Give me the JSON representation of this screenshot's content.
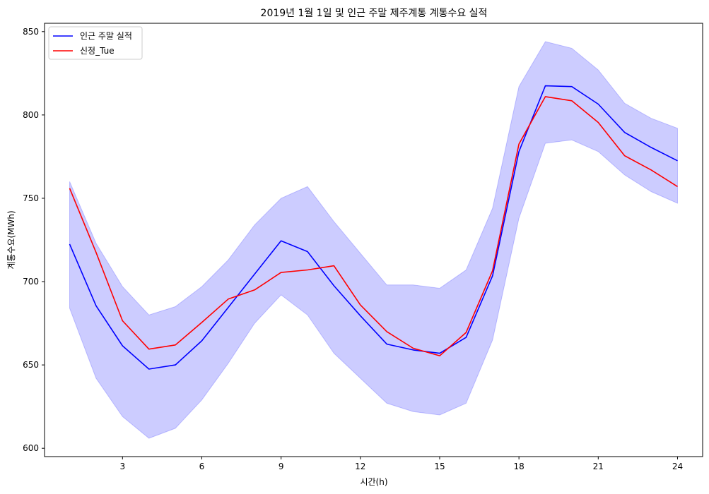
{
  "chart_data": {
    "type": "line",
    "title": "2019년 1월 1일 및 인근 주말 제주계통 계통수요 실적",
    "xlabel": "시간(h)",
    "ylabel": "계통수요(MWh)",
    "x": [
      1,
      2,
      3,
      4,
      5,
      6,
      7,
      8,
      9,
      10,
      11,
      12,
      13,
      14,
      15,
      16,
      17,
      18,
      19,
      20,
      21,
      22,
      23,
      24
    ],
    "xlim": [
      0.05,
      24.95
    ],
    "ylim": [
      595,
      855
    ],
    "xticks": [
      3,
      6,
      9,
      12,
      15,
      18,
      21,
      24
    ],
    "yticks": [
      600,
      650,
      700,
      750,
      800,
      850
    ],
    "grid": false,
    "legend_position": "top-left",
    "band": {
      "color": "#0000ff",
      "lower": [
        684,
        642,
        619,
        606,
        612,
        629,
        651,
        675,
        692,
        680,
        657,
        642,
        627,
        622,
        620,
        627,
        665,
        738,
        783,
        785,
        778,
        764,
        754,
        747
      ],
      "upper": [
        760,
        723,
        697,
        680,
        685,
        697,
        713,
        734,
        750,
        757,
        736,
        717,
        698,
        698,
        696,
        707,
        744,
        817,
        844,
        840,
        827,
        807,
        798,
        792
      ]
    },
    "series": [
      {
        "name": "인근 주말 실적",
        "color": "#0000ff",
        "values": [
          722.5,
          685.5,
          661.5,
          647.5,
          650,
          664.5,
          684.5,
          704.5,
          724.5,
          718,
          697.5,
          679.5,
          662.5,
          659,
          657,
          666.5,
          703.5,
          778,
          817.5,
          817,
          806.5,
          789.5,
          780.5,
          772.5
        ]
      },
      {
        "name": "신정_Tue",
        "color": "#ff0000",
        "values": [
          756,
          717.5,
          676.5,
          659.5,
          662,
          675.5,
          689.5,
          695,
          705.5,
          707,
          709.5,
          686,
          670,
          660,
          655.5,
          669.5,
          706.5,
          782.5,
          811,
          808.5,
          795.5,
          775.5,
          767,
          757
        ]
      }
    ]
  }
}
